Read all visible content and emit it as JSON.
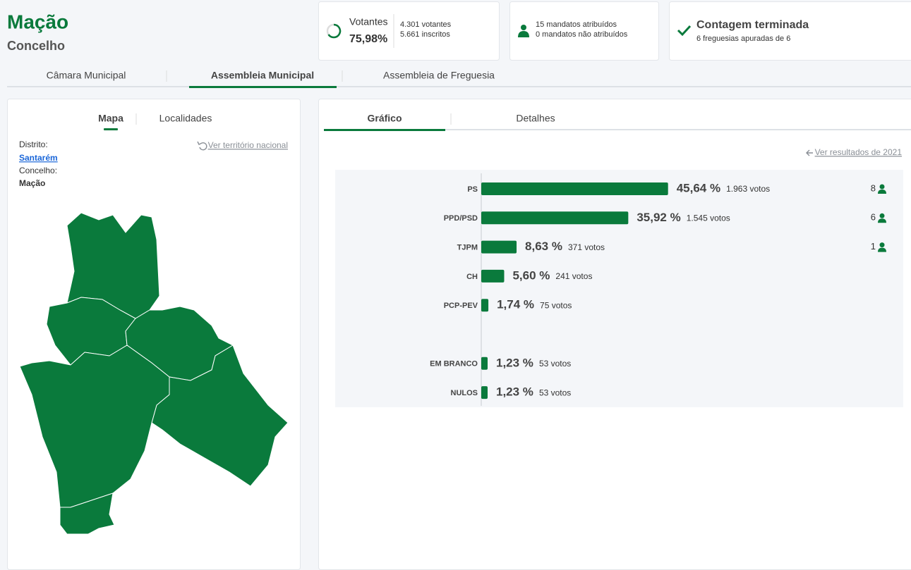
{
  "header": {
    "title": "Mação",
    "subtitle": "Concelho"
  },
  "stats": {
    "turnout_label": "Votantes",
    "turnout_value": "75,98%",
    "voters": "4.301 votantes",
    "registered": "5.661 inscritos",
    "mandates_assigned": "15 mandatos atribuídos",
    "mandates_unassigned": "0 mandatos não atribuídos",
    "status_title": "Contagem terminada",
    "status_detail": "6 freguesias apuradas de 6"
  },
  "tabs": [
    "Câmara Municipal",
    "Assembleia Municipal",
    "Assembleia de Freguesia"
  ],
  "left_panel": {
    "tabs": [
      "Mapa",
      "Localidades"
    ],
    "district_label": "Distrito:",
    "district": "Santarém",
    "municipality_label": "Concelho:",
    "municipality": "Mação",
    "national_link": "Ver território nacional"
  },
  "right_panel": {
    "tabs": [
      "Gráfico",
      "Detalhes"
    ],
    "previous_link": "Ver resultados de 2021"
  },
  "chart_data": {
    "type": "hbar",
    "color": "#0a7a3c",
    "categories": [
      "PS",
      "PPD/PSD",
      "TJPM",
      "CH",
      "PCP-PEV",
      "EM BRANCO",
      "NULOS"
    ],
    "values": [
      45.64,
      35.92,
      8.63,
      5.6,
      1.74,
      1.23,
      1.23
    ],
    "value_labels": [
      "45,64 %",
      "35,92 %",
      "8,63 %",
      "5,60 %",
      "1,74 %",
      "1,23 %",
      "1,23 %"
    ],
    "vote_labels": [
      "1.963 votos",
      "1.545 votos",
      "371 votos",
      "241 votos",
      "75 votos",
      "53 votos",
      "53 votos"
    ],
    "seats": [
      8,
      6,
      1,
      null,
      null,
      null,
      null
    ]
  }
}
